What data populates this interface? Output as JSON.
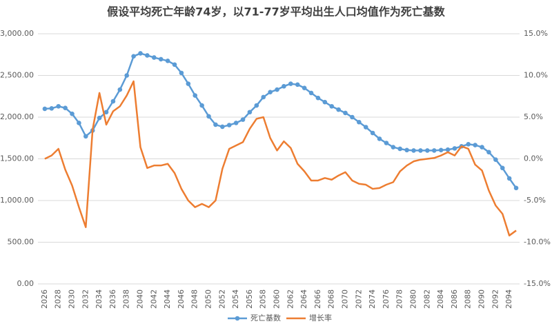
{
  "chart_data": {
    "type": "line",
    "title": "假设平均死亡年龄74岁，以71-77岁平均出生人口均值作为死亡基数",
    "x": [
      2026,
      2027,
      2028,
      2029,
      2030,
      2031,
      2032,
      2033,
      2034,
      2035,
      2036,
      2037,
      2038,
      2039,
      2040,
      2041,
      2042,
      2043,
      2044,
      2045,
      2046,
      2047,
      2048,
      2049,
      2050,
      2051,
      2052,
      2053,
      2054,
      2055,
      2056,
      2057,
      2058,
      2059,
      2060,
      2061,
      2062,
      2063,
      2064,
      2065,
      2066,
      2067,
      2068,
      2069,
      2070,
      2071,
      2072,
      2073,
      2074,
      2075,
      2076,
      2077,
      2078,
      2079,
      2080,
      2081,
      2082,
      2083,
      2084,
      2085,
      2086,
      2087,
      2088,
      2089,
      2090,
      2091,
      2092,
      2093,
      2094,
      2095
    ],
    "series": [
      {
        "name": "死亡基数",
        "color": "#5b9bd5",
        "markers": true,
        "values": [
          2100,
          2105,
          2130,
          2110,
          2040,
          1930,
          1770,
          1840,
          1990,
          2060,
          2190,
          2330,
          2500,
          2730,
          2765,
          2740,
          2715,
          2695,
          2675,
          2630,
          2530,
          2400,
          2260,
          2140,
          2010,
          1910,
          1885,
          1905,
          1930,
          1970,
          2060,
          2140,
          2240,
          2300,
          2330,
          2370,
          2400,
          2390,
          2350,
          2290,
          2230,
          2180,
          2130,
          2090,
          2050,
          2000,
          1940,
          1880,
          1810,
          1740,
          1690,
          1640,
          1620,
          1605,
          1600,
          1600,
          1600,
          1600,
          1605,
          1610,
          1625,
          1650,
          1675,
          1665,
          1640,
          1580,
          1490,
          1390,
          1265,
          1150
        ]
      },
      {
        "name": "增长率",
        "color": "#ed7d31",
        "axis": "y2",
        "values": [
          0.0,
          0.4,
          1.2,
          -1.3,
          -3.2,
          -5.8,
          -8.2,
          3.5,
          7.9,
          4.1,
          5.7,
          6.3,
          7.6,
          9.3,
          1.4,
          -1.1,
          -0.8,
          -0.8,
          -0.6,
          -1.7,
          -3.6,
          -5.0,
          -5.8,
          -5.4,
          -5.8,
          -5.0,
          -1.2,
          1.2,
          1.6,
          2.0,
          3.6,
          4.8,
          5.0,
          2.5,
          1.0,
          2.1,
          1.3,
          -0.6,
          -1.5,
          -2.6,
          -2.6,
          -2.3,
          -2.5,
          -2.0,
          -1.6,
          -2.6,
          -3.0,
          -3.1,
          -3.6,
          -3.5,
          -3.1,
          -2.8,
          -1.5,
          -0.8,
          -0.3,
          -0.1,
          0.0,
          0.1,
          0.4,
          0.8,
          0.4,
          1.5,
          1.2,
          -0.7,
          -1.4,
          -3.8,
          -5.6,
          -6.6,
          -9.2,
          -8.6
        ]
      }
    ],
    "xlim": [
      2025,
      2095.5
    ],
    "xticks": [
      2026,
      2028,
      2030,
      2032,
      2034,
      2036,
      2038,
      2040,
      2042,
      2044,
      2046,
      2048,
      2050,
      2052,
      2054,
      2056,
      2058,
      2060,
      2062,
      2064,
      2066,
      2068,
      2070,
      2072,
      2074,
      2076,
      2078,
      2080,
      2082,
      2084,
      2086,
      2088,
      2090,
      2092,
      2094
    ],
    "ylim": [
      0,
      3000
    ],
    "yticks": [
      {
        "value": 0,
        "label": "0.00"
      },
      {
        "value": 500,
        "label": "500.00"
      },
      {
        "value": 1000,
        "label": "1,000.00"
      },
      {
        "value": 1500,
        "label": "1,500.00"
      },
      {
        "value": 2000,
        "label": "2,000.00"
      },
      {
        "value": 2500,
        "label": "2,500.00"
      },
      {
        "value": 3000,
        "label": "3,000.00"
      }
    ],
    "y2lim": [
      -15,
      15
    ],
    "y2ticks": [
      {
        "value": -15,
        "label": "-15.0%"
      },
      {
        "value": -10,
        "label": "-10.0%"
      },
      {
        "value": -5,
        "label": "-5.0%"
      },
      {
        "value": 0,
        "label": "0.0%"
      },
      {
        "value": 5,
        "label": "5.0%"
      },
      {
        "value": 10,
        "label": "10.0%"
      },
      {
        "value": 15,
        "label": "15.0%"
      }
    ],
    "grid": true,
    "legend": "bottom"
  }
}
